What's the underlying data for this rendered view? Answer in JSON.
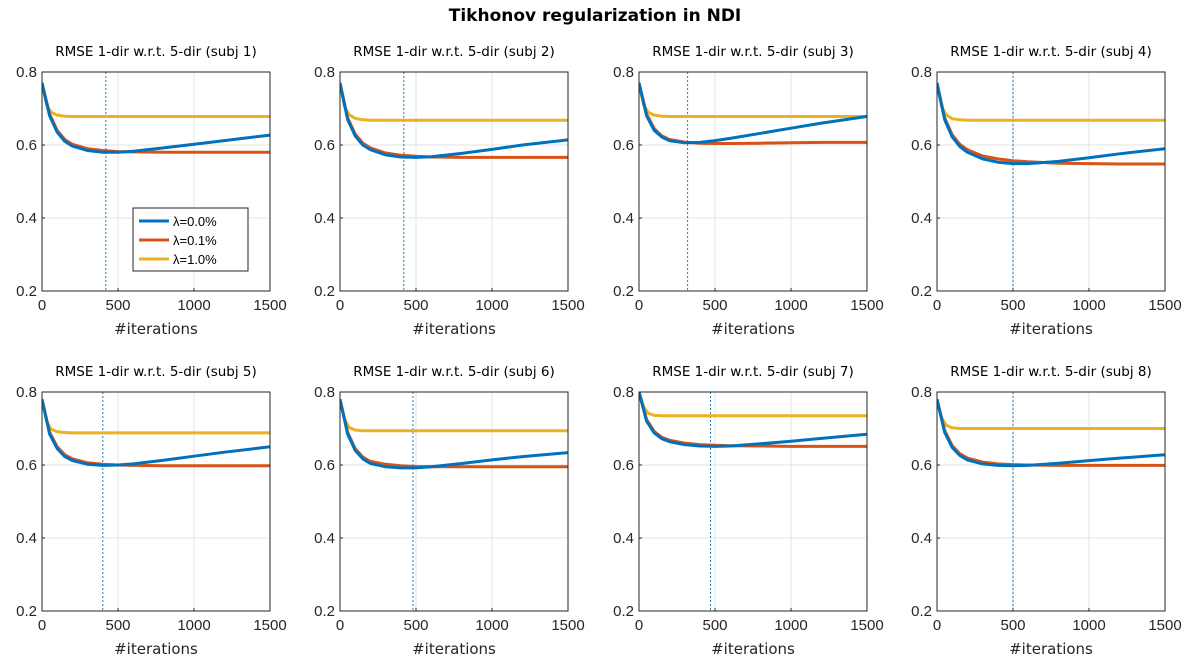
{
  "figure_title": "Tikhonov regularization in NDI",
  "colors": {
    "lambda_0.0": "#0072BD",
    "lambda_0.1": "#D95319",
    "lambda_1.0": "#EDB120"
  },
  "chart_data": [
    {
      "type": "line",
      "title": "RMSE 1-dir w.r.t. 5-dir (subj 1)",
      "xlabel": "#iterations",
      "ylabel": "",
      "xlim": [
        0,
        1500
      ],
      "ylim": [
        0.2,
        0.8
      ],
      "xticks": [
        0,
        500,
        1000,
        1500
      ],
      "yticks": [
        0.2,
        0.4,
        0.6,
        0.8
      ],
      "grid": true,
      "legend": {
        "placement": "center-left",
        "entries": [
          "λ=0.0%",
          "λ=0.1%",
          "λ=1.0%"
        ]
      },
      "vline_x": 420,
      "series": [
        {
          "name": "λ=0.0%",
          "color": "#0072BD",
          "x": [
            0,
            50,
            100,
            150,
            200,
            300,
            400,
            500,
            600,
            800,
            1000,
            1200,
            1500
          ],
          "y": [
            0.77,
            0.68,
            0.635,
            0.61,
            0.597,
            0.585,
            0.58,
            0.58,
            0.583,
            0.592,
            0.602,
            0.612,
            0.627
          ]
        },
        {
          "name": "λ=0.1%",
          "color": "#D95319",
          "x": [
            0,
            50,
            100,
            150,
            200,
            300,
            400,
            500,
            600,
            800,
            1000,
            1200,
            1500
          ],
          "y": [
            0.77,
            0.685,
            0.64,
            0.615,
            0.602,
            0.59,
            0.585,
            0.582,
            0.581,
            0.58,
            0.58,
            0.58,
            0.58
          ]
        },
        {
          "name": "λ=1.0%",
          "color": "#EDB120",
          "x": [
            0,
            30,
            60,
            100,
            150,
            200,
            300,
            500,
            1000,
            1500
          ],
          "y": [
            0.77,
            0.71,
            0.69,
            0.682,
            0.679,
            0.678,
            0.678,
            0.678,
            0.678,
            0.678
          ]
        }
      ]
    },
    {
      "type": "line",
      "title": "RMSE 1-dir w.r.t. 5-dir (subj 2)",
      "xlabel": "#iterations",
      "ylabel": "",
      "xlim": [
        0,
        1500
      ],
      "ylim": [
        0.2,
        0.8
      ],
      "xticks": [
        0,
        500,
        1000,
        1500
      ],
      "yticks": [
        0.2,
        0.4,
        0.6,
        0.8
      ],
      "grid": true,
      "vline_x": 420,
      "series": [
        {
          "name": "λ=0.0%",
          "color": "#0072BD",
          "x": [
            0,
            50,
            100,
            150,
            200,
            300,
            400,
            500,
            600,
            800,
            1000,
            1200,
            1500
          ],
          "y": [
            0.77,
            0.67,
            0.625,
            0.6,
            0.587,
            0.573,
            0.567,
            0.566,
            0.568,
            0.577,
            0.588,
            0.6,
            0.614
          ]
        },
        {
          "name": "λ=0.1%",
          "color": "#D95319",
          "x": [
            0,
            50,
            100,
            150,
            200,
            300,
            400,
            500,
            600,
            800,
            1000,
            1200,
            1500
          ],
          "y": [
            0.77,
            0.675,
            0.63,
            0.605,
            0.592,
            0.578,
            0.572,
            0.569,
            0.567,
            0.566,
            0.566,
            0.566,
            0.566
          ]
        },
        {
          "name": "λ=1.0%",
          "color": "#EDB120",
          "x": [
            0,
            30,
            60,
            100,
            150,
            200,
            300,
            500,
            1000,
            1500
          ],
          "y": [
            0.77,
            0.705,
            0.683,
            0.673,
            0.669,
            0.668,
            0.668,
            0.668,
            0.668,
            0.668
          ]
        }
      ]
    },
    {
      "type": "line",
      "title": "RMSE 1-dir w.r.t. 5-dir (subj 3)",
      "xlabel": "#iterations",
      "ylabel": "",
      "xlim": [
        0,
        1500
      ],
      "ylim": [
        0.2,
        0.8
      ],
      "xticks": [
        0,
        500,
        1000,
        1500
      ],
      "yticks": [
        0.2,
        0.4,
        0.6,
        0.8
      ],
      "grid": true,
      "vline_x": 320,
      "series": [
        {
          "name": "λ=0.0%",
          "color": "#0072BD",
          "x": [
            0,
            50,
            100,
            150,
            200,
            300,
            400,
            500,
            600,
            800,
            1000,
            1200,
            1500
          ],
          "y": [
            0.77,
            0.68,
            0.64,
            0.622,
            0.612,
            0.606,
            0.607,
            0.612,
            0.618,
            0.632,
            0.646,
            0.66,
            0.678
          ]
        },
        {
          "name": "λ=0.1%",
          "color": "#D95319",
          "x": [
            0,
            50,
            100,
            150,
            200,
            300,
            400,
            500,
            600,
            800,
            1000,
            1200,
            1500
          ],
          "y": [
            0.77,
            0.685,
            0.645,
            0.625,
            0.615,
            0.608,
            0.605,
            0.604,
            0.604,
            0.605,
            0.606,
            0.607,
            0.607
          ]
        },
        {
          "name": "λ=1.0%",
          "color": "#EDB120",
          "x": [
            0,
            30,
            60,
            100,
            150,
            200,
            300,
            500,
            1000,
            1500
          ],
          "y": [
            0.77,
            0.71,
            0.69,
            0.682,
            0.679,
            0.678,
            0.678,
            0.678,
            0.678,
            0.678
          ]
        }
      ]
    },
    {
      "type": "line",
      "title": "RMSE 1-dir w.r.t. 5-dir (subj 4)",
      "xlabel": "#iterations",
      "ylabel": "",
      "xlim": [
        0,
        1500
      ],
      "ylim": [
        0.2,
        0.8
      ],
      "xticks": [
        0,
        500,
        1000,
        1500
      ],
      "yticks": [
        0.2,
        0.4,
        0.6,
        0.8
      ],
      "grid": true,
      "vline_x": 500,
      "series": [
        {
          "name": "λ=0.0%",
          "color": "#0072BD",
          "x": [
            0,
            50,
            100,
            150,
            200,
            300,
            400,
            500,
            600,
            800,
            1000,
            1200,
            1500
          ],
          "y": [
            0.77,
            0.67,
            0.622,
            0.596,
            0.58,
            0.562,
            0.553,
            0.549,
            0.549,
            0.555,
            0.565,
            0.576,
            0.59
          ]
        },
        {
          "name": "λ=0.1%",
          "color": "#D95319",
          "x": [
            0,
            50,
            100,
            150,
            200,
            300,
            400,
            500,
            600,
            800,
            1000,
            1200,
            1500
          ],
          "y": [
            0.77,
            0.675,
            0.628,
            0.602,
            0.587,
            0.57,
            0.562,
            0.557,
            0.554,
            0.55,
            0.549,
            0.548,
            0.548
          ]
        },
        {
          "name": "λ=1.0%",
          "color": "#EDB120",
          "x": [
            0,
            30,
            60,
            100,
            150,
            200,
            300,
            500,
            1000,
            1500
          ],
          "y": [
            0.77,
            0.705,
            0.683,
            0.672,
            0.669,
            0.668,
            0.668,
            0.668,
            0.668,
            0.668
          ]
        }
      ]
    },
    {
      "type": "line",
      "title": "RMSE 1-dir w.r.t. 5-dir (subj 5)",
      "xlabel": "#iterations",
      "ylabel": "",
      "xlim": [
        0,
        1500
      ],
      "ylim": [
        0.2,
        0.8
      ],
      "xticks": [
        0,
        500,
        1000,
        1500
      ],
      "yticks": [
        0.2,
        0.4,
        0.6,
        0.8
      ],
      "grid": true,
      "vline_x": 400,
      "series": [
        {
          "name": "λ=0.0%",
          "color": "#0072BD",
          "x": [
            0,
            50,
            100,
            150,
            200,
            300,
            400,
            500,
            600,
            800,
            1000,
            1200,
            1500
          ],
          "y": [
            0.78,
            0.685,
            0.645,
            0.623,
            0.612,
            0.602,
            0.599,
            0.6,
            0.603,
            0.613,
            0.624,
            0.635,
            0.65
          ]
        },
        {
          "name": "λ=0.1%",
          "color": "#D95319",
          "x": [
            0,
            50,
            100,
            150,
            200,
            300,
            400,
            500,
            600,
            800,
            1000,
            1200,
            1500
          ],
          "y": [
            0.78,
            0.69,
            0.65,
            0.628,
            0.617,
            0.606,
            0.602,
            0.6,
            0.599,
            0.598,
            0.598,
            0.598,
            0.598
          ]
        },
        {
          "name": "λ=1.0%",
          "color": "#EDB120",
          "x": [
            0,
            30,
            60,
            100,
            150,
            200,
            300,
            500,
            1000,
            1500
          ],
          "y": [
            0.78,
            0.72,
            0.698,
            0.691,
            0.689,
            0.688,
            0.688,
            0.688,
            0.688,
            0.688
          ]
        }
      ]
    },
    {
      "type": "line",
      "title": "RMSE 1-dir w.r.t. 5-dir (subj 6)",
      "xlabel": "#iterations",
      "ylabel": "",
      "xlim": [
        0,
        1500
      ],
      "ylim": [
        0.2,
        0.8
      ],
      "xticks": [
        0,
        500,
        1000,
        1500
      ],
      "yticks": [
        0.2,
        0.4,
        0.6,
        0.8
      ],
      "grid": true,
      "vline_x": 480,
      "series": [
        {
          "name": "λ=0.0%",
          "color": "#0072BD",
          "x": [
            0,
            50,
            100,
            150,
            200,
            300,
            400,
            500,
            600,
            800,
            1000,
            1200,
            1500
          ],
          "y": [
            0.78,
            0.685,
            0.64,
            0.617,
            0.604,
            0.595,
            0.592,
            0.592,
            0.595,
            0.604,
            0.614,
            0.623,
            0.634
          ]
        },
        {
          "name": "λ=0.1%",
          "color": "#D95319",
          "x": [
            0,
            50,
            100,
            150,
            200,
            300,
            400,
            500,
            600,
            800,
            1000,
            1200,
            1500
          ],
          "y": [
            0.78,
            0.69,
            0.645,
            0.622,
            0.61,
            0.602,
            0.598,
            0.596,
            0.595,
            0.595,
            0.595,
            0.595,
            0.595
          ]
        },
        {
          "name": "λ=1.0%",
          "color": "#EDB120",
          "x": [
            0,
            30,
            60,
            100,
            150,
            200,
            300,
            500,
            1000,
            1500
          ],
          "y": [
            0.78,
            0.725,
            0.703,
            0.696,
            0.694,
            0.694,
            0.694,
            0.694,
            0.694,
            0.694
          ]
        }
      ]
    },
    {
      "type": "line",
      "title": "RMSE 1-dir w.r.t. 5-dir (subj 7)",
      "xlabel": "#iterations",
      "ylabel": "",
      "xlim": [
        0,
        1500
      ],
      "ylim": [
        0.2,
        0.8
      ],
      "xticks": [
        0,
        500,
        1000,
        1500
      ],
      "yticks": [
        0.2,
        0.4,
        0.6,
        0.8
      ],
      "grid": true,
      "vline_x": 470,
      "series": [
        {
          "name": "λ=0.0%",
          "color": "#0072BD",
          "x": [
            0,
            50,
            100,
            150,
            200,
            300,
            400,
            500,
            600,
            800,
            1000,
            1200,
            1500
          ],
          "y": [
            0.8,
            0.72,
            0.688,
            0.672,
            0.664,
            0.656,
            0.652,
            0.651,
            0.652,
            0.658,
            0.665,
            0.673,
            0.684
          ]
        },
        {
          "name": "λ=0.1%",
          "color": "#D95319",
          "x": [
            0,
            50,
            100,
            150,
            200,
            300,
            400,
            500,
            600,
            800,
            1000,
            1200,
            1500
          ],
          "y": [
            0.8,
            0.725,
            0.692,
            0.676,
            0.668,
            0.66,
            0.656,
            0.654,
            0.653,
            0.652,
            0.651,
            0.651,
            0.651
          ]
        },
        {
          "name": "λ=1.0%",
          "color": "#EDB120",
          "x": [
            0,
            30,
            60,
            100,
            150,
            200,
            300,
            500,
            1000,
            1500
          ],
          "y": [
            0.8,
            0.76,
            0.742,
            0.736,
            0.735,
            0.735,
            0.735,
            0.735,
            0.735,
            0.735
          ]
        }
      ]
    },
    {
      "type": "line",
      "title": "RMSE 1-dir w.r.t. 5-dir (subj 8)",
      "xlabel": "#iterations",
      "ylabel": "",
      "xlim": [
        0,
        1500
      ],
      "ylim": [
        0.2,
        0.8
      ],
      "xticks": [
        0,
        500,
        1000,
        1500
      ],
      "yticks": [
        0.2,
        0.4,
        0.6,
        0.8
      ],
      "grid": true,
      "vline_x": 500,
      "series": [
        {
          "name": "λ=0.0%",
          "color": "#0072BD",
          "x": [
            0,
            50,
            100,
            150,
            200,
            300,
            400,
            500,
            600,
            800,
            1000,
            1200,
            1500
          ],
          "y": [
            0.78,
            0.69,
            0.648,
            0.626,
            0.614,
            0.603,
            0.599,
            0.598,
            0.599,
            0.605,
            0.612,
            0.619,
            0.628
          ]
        },
        {
          "name": "λ=0.1%",
          "color": "#D95319",
          "x": [
            0,
            50,
            100,
            150,
            200,
            300,
            400,
            500,
            600,
            800,
            1000,
            1200,
            1500
          ],
          "y": [
            0.78,
            0.695,
            0.653,
            0.631,
            0.619,
            0.608,
            0.603,
            0.601,
            0.6,
            0.599,
            0.599,
            0.599,
            0.599
          ]
        },
        {
          "name": "λ=1.0%",
          "color": "#EDB120",
          "x": [
            0,
            30,
            60,
            100,
            150,
            200,
            300,
            500,
            1000,
            1500
          ],
          "y": [
            0.78,
            0.73,
            0.709,
            0.702,
            0.7,
            0.7,
            0.7,
            0.7,
            0.7,
            0.7
          ]
        }
      ]
    }
  ]
}
